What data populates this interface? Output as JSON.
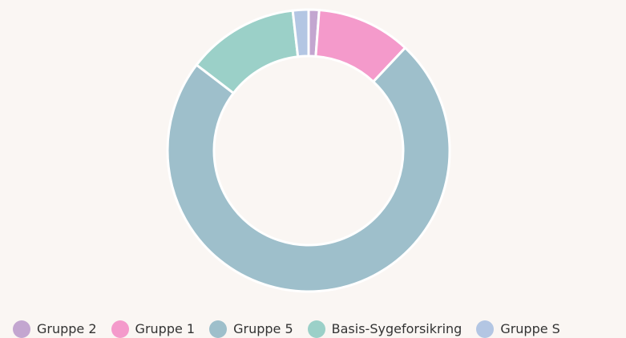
{
  "chart_data": {
    "type": "donut",
    "categories": [
      "Gruppe 2",
      "Gruppe 1",
      "Gruppe 5",
      "Basis-Sygeforsikring",
      "Gruppe S"
    ],
    "values": [
      1.2,
      10.8,
      73.4,
      12.8,
      1.8
    ],
    "colors": [
      "#c3a6d0",
      "#f49acb",
      "#9ebfcb",
      "#9bd0c8",
      "#b3c6e3"
    ],
    "legend": "bottom"
  }
}
